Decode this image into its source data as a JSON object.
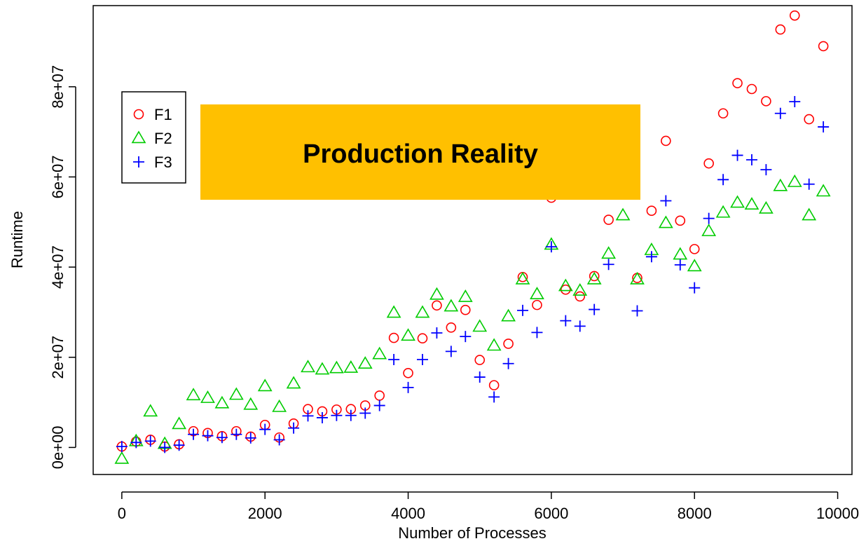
{
  "chart_data": {
    "type": "scatter",
    "title": "",
    "xlabel": "Number of Processes",
    "ylabel": "Runtime",
    "xlim": [
      -400,
      10200
    ],
    "ylim": [
      -6000000,
      98000000
    ],
    "x_ticks": [
      0,
      2000,
      4000,
      6000,
      8000,
      10000
    ],
    "x_tick_labels": [
      "0",
      "2000",
      "4000",
      "6000",
      "8000",
      "10000"
    ],
    "y_ticks": [
      0,
      20000000,
      40000000,
      60000000,
      80000000
    ],
    "y_tick_labels": [
      "0e+00",
      "2e+07",
      "4e+07",
      "6e+07",
      "8e+07"
    ],
    "grid": false,
    "legend_position": "top-left",
    "annotation": "Production Reality",
    "annotation_color": "#FFC000",
    "series": [
      {
        "name": "F1",
        "marker": "circle",
        "color": "#FF0000",
        "points": [
          [
            0,
            200000
          ],
          [
            200,
            1300000
          ],
          [
            400,
            1700000
          ],
          [
            600,
            200000
          ],
          [
            800,
            700000
          ],
          [
            1000,
            3600000
          ],
          [
            1200,
            3200000
          ],
          [
            1400,
            2500000
          ],
          [
            1600,
            3600000
          ],
          [
            1800,
            2400000
          ],
          [
            2000,
            5000000
          ],
          [
            2200,
            2200000
          ],
          [
            2400,
            5300000
          ],
          [
            2600,
            8500000
          ],
          [
            2800,
            8000000
          ],
          [
            3000,
            8400000
          ],
          [
            3200,
            8500000
          ],
          [
            3400,
            9300000
          ],
          [
            3600,
            11500000
          ],
          [
            3800,
            24300000
          ],
          [
            4000,
            16500000
          ],
          [
            4200,
            24200000
          ],
          [
            4400,
            31500000
          ],
          [
            4600,
            26600000
          ],
          [
            4800,
            30500000
          ],
          [
            5000,
            19400000
          ],
          [
            5200,
            13800000
          ],
          [
            5400,
            23000000
          ],
          [
            5600,
            37800000
          ],
          [
            5800,
            31600000
          ],
          [
            6000,
            55400000
          ],
          [
            6200,
            35000000
          ],
          [
            6400,
            33500000
          ],
          [
            6600,
            38000000
          ],
          [
            6800,
            50500000
          ],
          [
            7200,
            37600000
          ],
          [
            7400,
            52500000
          ],
          [
            7600,
            68000000
          ],
          [
            7800,
            50300000
          ],
          [
            8000,
            44000000
          ],
          [
            8200,
            63000000
          ],
          [
            8400,
            74100000
          ],
          [
            8600,
            80800000
          ],
          [
            8800,
            79500000
          ],
          [
            9000,
            76800000
          ],
          [
            9200,
            92700000
          ],
          [
            9400,
            95800000
          ],
          [
            9600,
            72800000
          ],
          [
            9800,
            89000000
          ]
        ]
      },
      {
        "name": "F2",
        "marker": "triangle",
        "color": "#00CC00",
        "points": [
          [
            0,
            -2500000
          ],
          [
            200,
            1400000
          ],
          [
            400,
            8000000
          ],
          [
            600,
            800000
          ],
          [
            800,
            5200000
          ],
          [
            1000,
            11600000
          ],
          [
            1200,
            11000000
          ],
          [
            1400,
            9800000
          ],
          [
            1600,
            11700000
          ],
          [
            1800,
            9500000
          ],
          [
            2000,
            13600000
          ],
          [
            2200,
            9000000
          ],
          [
            2400,
            14200000
          ],
          [
            2600,
            17800000
          ],
          [
            2800,
            17300000
          ],
          [
            3000,
            17600000
          ],
          [
            3200,
            17700000
          ],
          [
            3400,
            18600000
          ],
          [
            3600,
            20700000
          ],
          [
            3800,
            29900000
          ],
          [
            4000,
            24800000
          ],
          [
            4200,
            29900000
          ],
          [
            4400,
            33900000
          ],
          [
            4600,
            31300000
          ],
          [
            4800,
            33400000
          ],
          [
            5000,
            26800000
          ],
          [
            5200,
            22600000
          ],
          [
            5400,
            29100000
          ],
          [
            5600,
            37300000
          ],
          [
            5800,
            34000000
          ],
          [
            6000,
            45000000
          ],
          [
            6200,
            35800000
          ],
          [
            6400,
            34800000
          ],
          [
            6600,
            37300000
          ],
          [
            6800,
            43000000
          ],
          [
            7000,
            51500000
          ],
          [
            7200,
            37300000
          ],
          [
            7400,
            43800000
          ],
          [
            7600,
            49800000
          ],
          [
            7800,
            42800000
          ],
          [
            8000,
            40200000
          ],
          [
            8200,
            48000000
          ],
          [
            8400,
            52100000
          ],
          [
            8600,
            54300000
          ],
          [
            8800,
            53900000
          ],
          [
            9000,
            53000000
          ],
          [
            9200,
            58000000
          ],
          [
            9400,
            58900000
          ],
          [
            9600,
            51500000
          ],
          [
            9800,
            56800000
          ]
        ]
      },
      {
        "name": "F3",
        "marker": "plus",
        "color": "#0000FF",
        "points": [
          [
            0,
            200000
          ],
          [
            200,
            1100000
          ],
          [
            400,
            1400000
          ],
          [
            600,
            0
          ],
          [
            800,
            500000
          ],
          [
            1000,
            2900000
          ],
          [
            1200,
            2600000
          ],
          [
            1400,
            2200000
          ],
          [
            1600,
            2900000
          ],
          [
            1800,
            2100000
          ],
          [
            2000,
            4000000
          ],
          [
            2200,
            1700000
          ],
          [
            2400,
            4300000
          ],
          [
            2600,
            7000000
          ],
          [
            2800,
            6600000
          ],
          [
            3000,
            7100000
          ],
          [
            3200,
            7100000
          ],
          [
            3400,
            7600000
          ],
          [
            3600,
            9300000
          ],
          [
            3800,
            19500000
          ],
          [
            4000,
            13300000
          ],
          [
            4200,
            19500000
          ],
          [
            4400,
            25400000
          ],
          [
            4600,
            21300000
          ],
          [
            4800,
            24600000
          ],
          [
            5000,
            15600000
          ],
          [
            5200,
            11200000
          ],
          [
            5400,
            18600000
          ],
          [
            5600,
            30400000
          ],
          [
            5800,
            25500000
          ],
          [
            6000,
            44500000
          ],
          [
            6200,
            28100000
          ],
          [
            6400,
            26900000
          ],
          [
            6600,
            30600000
          ],
          [
            6800,
            40600000
          ],
          [
            7200,
            30300000
          ],
          [
            7400,
            42300000
          ],
          [
            7600,
            54700000
          ],
          [
            7800,
            40500000
          ],
          [
            8000,
            35400000
          ],
          [
            8200,
            50800000
          ],
          [
            8400,
            59400000
          ],
          [
            8600,
            64800000
          ],
          [
            8800,
            63800000
          ],
          [
            9000,
            61600000
          ],
          [
            9200,
            74100000
          ],
          [
            9400,
            76700000
          ],
          [
            9600,
            58400000
          ],
          [
            9800,
            71100000
          ]
        ]
      }
    ]
  }
}
